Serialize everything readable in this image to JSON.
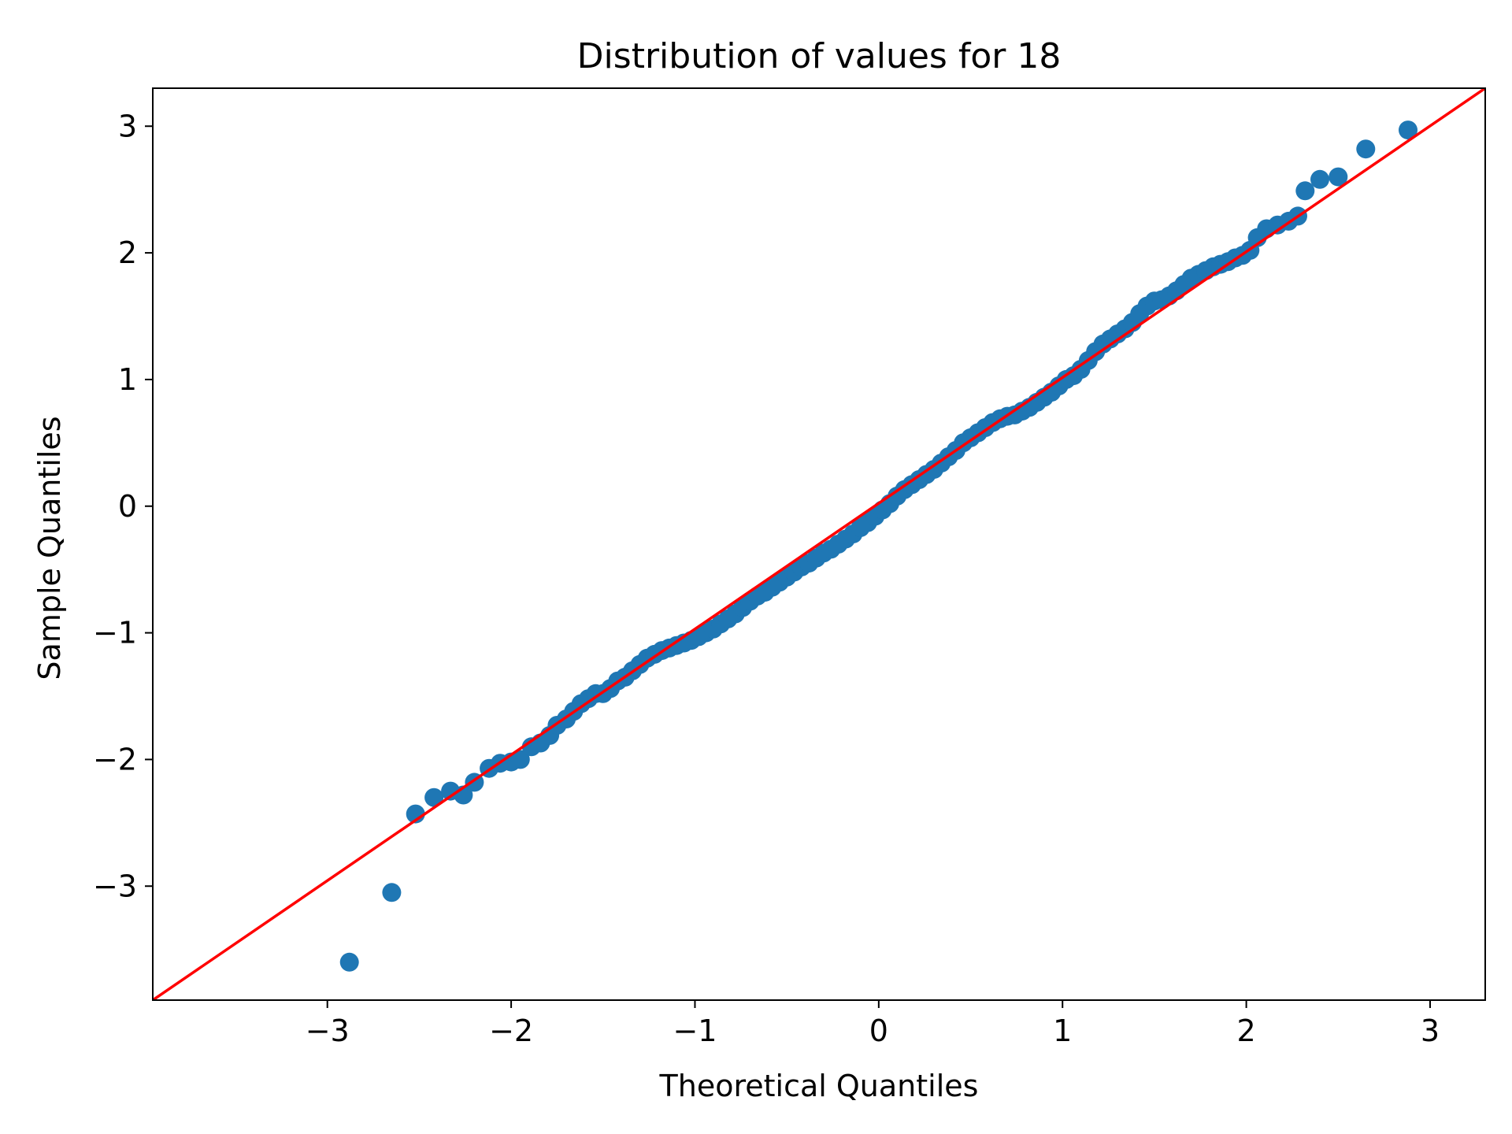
{
  "chart_data": {
    "type": "scatter",
    "title": "Distribution of values for 18",
    "xlabel": "Theoretical Quantiles",
    "ylabel": "Sample Quantiles",
    "xlim": [
      -3.95,
      3.3
    ],
    "ylim": [
      -3.9,
      3.3
    ],
    "xticks": [
      -3,
      -2,
      -1,
      0,
      1,
      2,
      3
    ],
    "xtick_labels": [
      "−3",
      "−2",
      "−1",
      "0",
      "1",
      "2",
      "3"
    ],
    "yticks": [
      -3,
      -2,
      -1,
      0,
      1,
      2,
      3
    ],
    "ytick_labels": [
      "−3",
      "−2",
      "−1",
      "0",
      "1",
      "2",
      "3"
    ],
    "grid": false,
    "legend": false,
    "series": [
      {
        "marker": "circle",
        "color": "#1f77b4",
        "points": [
          [
            -2.88,
            -3.6
          ],
          [
            -2.65,
            -3.05
          ],
          [
            -2.52,
            -2.43
          ],
          [
            -2.42,
            -2.3
          ],
          [
            -2.33,
            -2.25
          ],
          [
            -2.26,
            -2.28
          ],
          [
            -2.2,
            -2.18
          ],
          [
            -2.12,
            -2.07
          ],
          [
            -2.06,
            -2.03
          ],
          [
            -2.0,
            -2.02
          ],
          [
            -1.95,
            -2.0
          ],
          [
            -1.89,
            -1.9
          ],
          [
            -1.84,
            -1.87
          ],
          [
            -1.79,
            -1.81
          ],
          [
            -1.75,
            -1.73
          ],
          [
            -1.7,
            -1.68
          ],
          [
            -1.66,
            -1.62
          ],
          [
            -1.62,
            -1.56
          ],
          [
            -1.58,
            -1.52
          ],
          [
            -1.54,
            -1.48
          ],
          [
            -1.5,
            -1.48
          ],
          [
            -1.46,
            -1.44
          ],
          [
            -1.42,
            -1.38
          ],
          [
            -1.38,
            -1.35
          ],
          [
            -1.34,
            -1.3
          ],
          [
            -1.3,
            -1.25
          ],
          [
            -1.26,
            -1.2
          ],
          [
            -1.22,
            -1.17
          ],
          [
            -1.18,
            -1.14
          ],
          [
            -1.14,
            -1.12
          ],
          [
            -1.1,
            -1.1
          ],
          [
            -1.06,
            -1.08
          ],
          [
            -1.02,
            -1.06
          ],
          [
            -0.98,
            -1.03
          ],
          [
            -0.94,
            -1.0
          ],
          [
            -0.9,
            -0.97
          ],
          [
            -0.86,
            -0.93
          ],
          [
            -0.82,
            -0.89
          ],
          [
            -0.78,
            -0.85
          ],
          [
            -0.74,
            -0.8
          ],
          [
            -0.7,
            -0.75
          ],
          [
            -0.66,
            -0.71
          ],
          [
            -0.62,
            -0.68
          ],
          [
            -0.58,
            -0.64
          ],
          [
            -0.54,
            -0.6
          ],
          [
            -0.5,
            -0.56
          ],
          [
            -0.46,
            -0.52
          ],
          [
            -0.42,
            -0.48
          ],
          [
            -0.38,
            -0.45
          ],
          [
            -0.34,
            -0.41
          ],
          [
            -0.3,
            -0.37
          ],
          [
            -0.26,
            -0.34
          ],
          [
            -0.22,
            -0.3
          ],
          [
            -0.18,
            -0.26
          ],
          [
            -0.14,
            -0.22
          ],
          [
            -0.1,
            -0.17
          ],
          [
            -0.06,
            -0.13
          ],
          [
            -0.02,
            -0.08
          ],
          [
            0.02,
            -0.03
          ],
          [
            0.06,
            0.02
          ],
          [
            0.1,
            0.08
          ],
          [
            0.14,
            0.13
          ],
          [
            0.18,
            0.17
          ],
          [
            0.22,
            0.21
          ],
          [
            0.26,
            0.25
          ],
          [
            0.3,
            0.29
          ],
          [
            0.34,
            0.34
          ],
          [
            0.38,
            0.39
          ],
          [
            0.42,
            0.44
          ],
          [
            0.46,
            0.5
          ],
          [
            0.5,
            0.54
          ],
          [
            0.54,
            0.58
          ],
          [
            0.58,
            0.62
          ],
          [
            0.62,
            0.66
          ],
          [
            0.66,
            0.69
          ],
          [
            0.7,
            0.71
          ],
          [
            0.74,
            0.72
          ],
          [
            0.78,
            0.75
          ],
          [
            0.82,
            0.78
          ],
          [
            0.86,
            0.82
          ],
          [
            0.9,
            0.86
          ],
          [
            0.94,
            0.9
          ],
          [
            0.98,
            0.95
          ],
          [
            1.02,
            1.0
          ],
          [
            1.06,
            1.03
          ],
          [
            1.1,
            1.08
          ],
          [
            1.14,
            1.15
          ],
          [
            1.18,
            1.22
          ],
          [
            1.22,
            1.28
          ],
          [
            1.26,
            1.32
          ],
          [
            1.3,
            1.36
          ],
          [
            1.34,
            1.4
          ],
          [
            1.38,
            1.45
          ],
          [
            1.42,
            1.52
          ],
          [
            1.46,
            1.58
          ],
          [
            1.5,
            1.62
          ],
          [
            1.54,
            1.63
          ],
          [
            1.58,
            1.66
          ],
          [
            1.62,
            1.7
          ],
          [
            1.66,
            1.75
          ],
          [
            1.7,
            1.8
          ],
          [
            1.74,
            1.83
          ],
          [
            1.78,
            1.86
          ],
          [
            1.82,
            1.89
          ],
          [
            1.86,
            1.91
          ],
          [
            1.9,
            1.93
          ],
          [
            1.94,
            1.96
          ],
          [
            1.98,
            1.98
          ],
          [
            2.02,
            2.02
          ],
          [
            2.06,
            2.12
          ],
          [
            2.11,
            2.19
          ],
          [
            2.17,
            2.22
          ],
          [
            2.23,
            2.25
          ],
          [
            2.28,
            2.29
          ],
          [
            2.32,
            2.49
          ],
          [
            2.4,
            2.58
          ],
          [
            2.5,
            2.6
          ],
          [
            2.65,
            2.82
          ],
          [
            2.88,
            2.97
          ]
        ]
      },
      {
        "type": "line",
        "color": "#ff0000",
        "x": [
          -3.95,
          3.3
        ],
        "y": [
          -3.9,
          3.3
        ]
      }
    ]
  }
}
